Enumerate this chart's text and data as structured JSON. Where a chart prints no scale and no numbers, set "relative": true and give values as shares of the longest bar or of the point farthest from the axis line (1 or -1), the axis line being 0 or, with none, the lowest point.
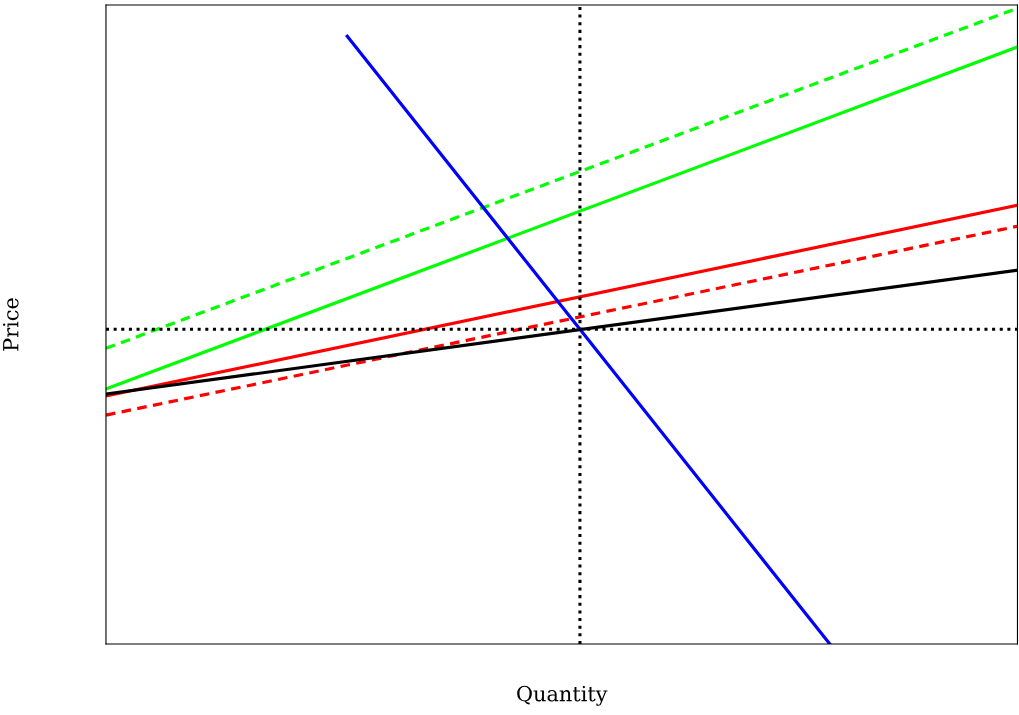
{
  "chart_data": {
    "type": "line",
    "relative": true,
    "xlabel": "Quantity",
    "ylabel": "Price",
    "categories": [
      null,
      null,
      null,
      null,
      null,
      null,
      null,
      null,
      null,
      null,
      null,
      null,
      null,
      null,
      null,
      null,
      null,
      null,
      null,
      null,
      null,
      null,
      null,
      null,
      null,
      null,
      null,
      null,
      null,
      null,
      null,
      null,
      null,
      null,
      null
    ],
    "tick_labels": false,
    "legend": false,
    "marker": "none",
    "series": [
      {
        "color": "#00ff00",
        "line_style": "dashed",
        "values": [
          0.465,
          null,
          null,
          null,
          null,
          null,
          null,
          null,
          null,
          null,
          null,
          null,
          null,
          null,
          null,
          null,
          null,
          null,
          null,
          null,
          null,
          null,
          null,
          null,
          null,
          null,
          null,
          null,
          null,
          null,
          null,
          null,
          null,
          null,
          1
        ]
      },
      {
        "color": "#00ff00",
        "line_style": "solid",
        "values": [
          0.401,
          null,
          null,
          null,
          null,
          null,
          null,
          null,
          null,
          null,
          null,
          null,
          null,
          null,
          null,
          null,
          null,
          null,
          null,
          null,
          null,
          null,
          null,
          null,
          null,
          null,
          null,
          null,
          null,
          null,
          null,
          null,
          null,
          null,
          0.939
        ]
      },
      {
        "color": "#ff0000",
        "line_style": "solid",
        "values": [
          0.39,
          null,
          null,
          null,
          null,
          null,
          null,
          null,
          null,
          null,
          null,
          null,
          null,
          null,
          null,
          null,
          null,
          null,
          null,
          null,
          null,
          null,
          null,
          null,
          null,
          null,
          null,
          null,
          null,
          null,
          null,
          null,
          null,
          null,
          0.69
        ]
      },
      {
        "color": "#ff0000",
        "line_style": "dashed",
        "values": [
          0.36,
          null,
          null,
          null,
          null,
          null,
          null,
          null,
          null,
          null,
          null,
          null,
          null,
          null,
          null,
          null,
          null,
          null,
          null,
          null,
          null,
          null,
          null,
          null,
          null,
          null,
          null,
          null,
          null,
          null,
          null,
          null,
          null,
          null,
          0.657
        ]
      },
      {
        "color": "#000000",
        "line_style": "solid",
        "values": [
          0.393,
          null,
          null,
          null,
          null,
          null,
          null,
          null,
          null,
          null,
          null,
          null,
          null,
          null,
          null,
          null,
          null,
          null,
          null,
          null,
          null,
          null,
          null,
          null,
          null,
          null,
          null,
          null,
          null,
          null,
          null,
          null,
          null,
          null,
          0.588
        ]
      },
      {
        "color": "#0000ff",
        "line_style": "solid",
        "values": [
          null,
          null,
          null,
          null,
          null,
          null,
          null,
          null,
          null,
          0.956,
          null,
          null,
          null,
          null,
          null,
          null,
          null,
          null,
          null,
          null,
          null,
          null,
          null,
          null,
          null,
          null,
          null,
          0,
          null,
          null,
          null,
          null,
          null,
          null,
          null
        ]
      }
    ],
    "ref_lines": [
      {
        "axis": "y",
        "value": 0.495,
        "color": "#000000",
        "line_style": "dotted"
      }
    ]
  }
}
